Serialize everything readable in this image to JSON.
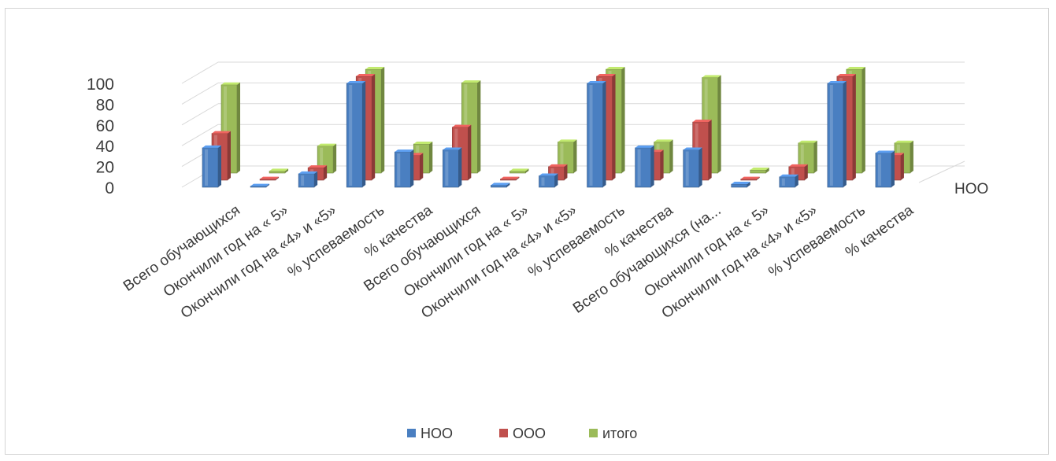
{
  "chart_data": {
    "type": "bar",
    "categories": [
      "Всего обучающихся",
      "Окончили год на « 5»",
      "Окончили год на «4» и «5»",
      "% успеваемость",
      "% качества",
      "Всего обучающихся",
      "Окончили год на « 5»",
      "Окончили год на «4» и «5»",
      "% успеваемость",
      "% качества",
      "Всего обучающихся (на...",
      "Окончили год на « 5»",
      "Окончили год на «4» и «5»",
      "% успеваемость",
      "% качества"
    ],
    "series": [
      {
        "name": "НОО",
        "color": "#4a7fc1",
        "values": [
          38,
          1,
          13,
          100,
          34,
          36,
          2,
          11,
          100,
          38,
          36,
          3,
          10,
          100,
          33
        ]
      },
      {
        "name": "ООО",
        "color": "#c0504d",
        "values": [
          45,
          1,
          12,
          100,
          24,
          51,
          1,
          13,
          100,
          27,
          56,
          1,
          13,
          100,
          24
        ]
      },
      {
        "name": "итого",
        "color": "#9bbb59",
        "values": [
          85,
          2,
          26,
          100,
          28,
          87,
          2,
          30,
          100,
          30,
          92,
          3,
          29,
          100,
          29
        ]
      }
    ],
    "yticks": [
      "0",
      "20",
      "40",
      "60",
      "80",
      "100"
    ],
    "ylim": [
      0,
      100
    ],
    "depth_label": "НОО",
    "grid": true,
    "legend_position": "bottom"
  }
}
